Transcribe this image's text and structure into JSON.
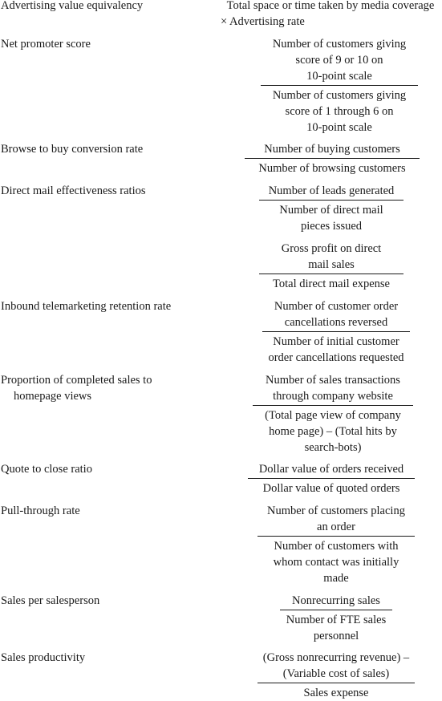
{
  "rows": [
    {
      "name": [
        "Advertising value equivalency"
      ],
      "text": [
        "Total space or time taken by media coverage",
        "× Advertising rate"
      ]
    },
    {
      "name": [
        "Net promoter score"
      ],
      "num": [
        "Number of customers giving",
        "score of 9 or 10 on",
        "10-point scale"
      ],
      "den": [
        "Number of customers giving",
        "score of 1 through 6 on",
        "10-point scale"
      ]
    },
    {
      "name": [
        "Browse to buy conversion rate"
      ],
      "num": [
        "Number of buying customers"
      ],
      "den": [
        "Number of browsing customers"
      ]
    },
    {
      "name": [
        "Direct mail effectiveness ratios"
      ],
      "num": [
        "Number of leads generated"
      ],
      "den": [
        "Number of direct mail",
        "pieces issued"
      ],
      "num2": [
        "Gross profit on direct",
        "mail sales"
      ],
      "den2": [
        "Total direct mail expense"
      ]
    },
    {
      "name": [
        "Inbound telemarketing retention rate"
      ],
      "num": [
        "Number of customer order",
        "cancellations reversed"
      ],
      "den": [
        "Number of initial customer",
        "order cancellations requested"
      ]
    },
    {
      "name": [
        "Proportion of completed sales to",
        "homepage views"
      ],
      "num": [
        "Number of sales transactions",
        "through company website"
      ],
      "den": [
        "(Total page view of company",
        "home page) – (Total hits by",
        "search-bots)"
      ]
    },
    {
      "name": [
        "Quote to close ratio"
      ],
      "num": [
        "Dollar value of orders received"
      ],
      "den": [
        "Dollar value of quoted orders"
      ]
    },
    {
      "name": [
        "Pull-through rate"
      ],
      "num": [
        "Number of customers placing",
        "an order"
      ],
      "den": [
        "Number of customers with",
        "whom contact was initially",
        "made"
      ]
    },
    {
      "name": [
        "Sales per salesperson"
      ],
      "num": [
        "Nonrecurring sales"
      ],
      "den": [
        "Number of FTE sales",
        "personnel"
      ]
    },
    {
      "name": [
        "Sales productivity"
      ],
      "num": [
        "(Gross nonrecurring revenue) –",
        "(Variable cost of sales)"
      ],
      "den": [
        "Sales expense"
      ]
    }
  ]
}
